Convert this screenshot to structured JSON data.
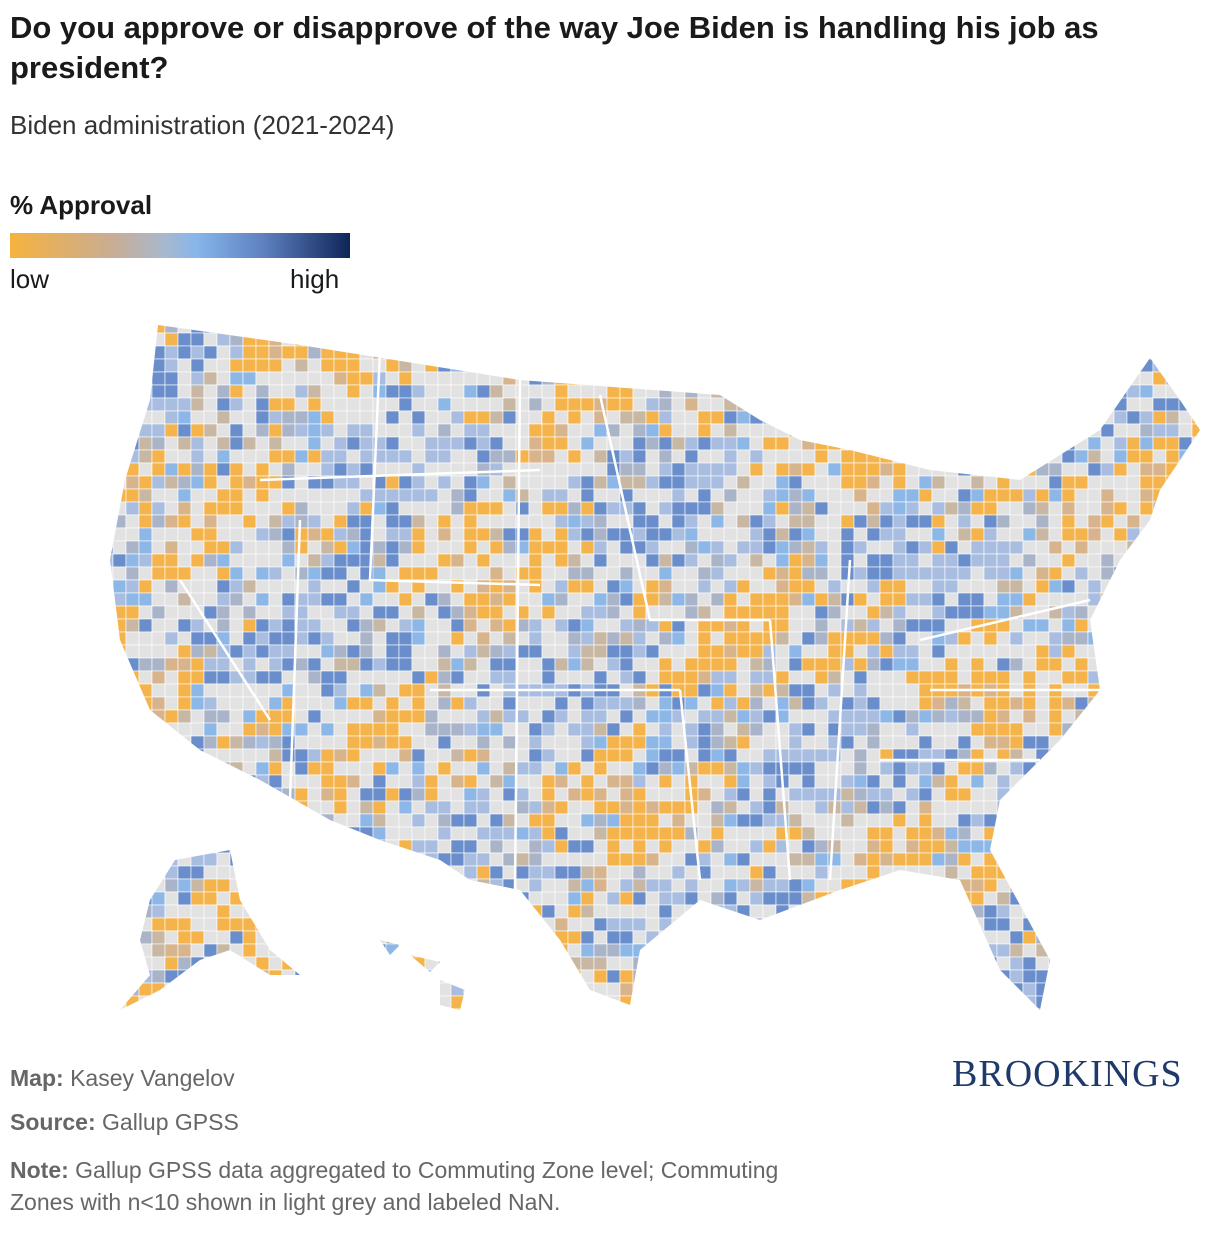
{
  "header": {
    "title": "Do you approve or disapprove of the way Joe Biden is handling his job as president?",
    "subtitle": "Biden administration (2021-2024)"
  },
  "legend": {
    "title": "% Approval",
    "low": "low",
    "high": "high"
  },
  "footer": {
    "map": {
      "label": "Map:",
      "text": "Kasey Vangelov"
    },
    "source": {
      "label": "Source:",
      "text": "Gallup GPSS"
    },
    "note": {
      "label": "Note:",
      "text": "Gallup GPSS data aggregated to Commuting Zone level; Commuting Zones with n<10 shown in light grey and labeled NaN."
    }
  },
  "logo": "BROOKINGS"
}
